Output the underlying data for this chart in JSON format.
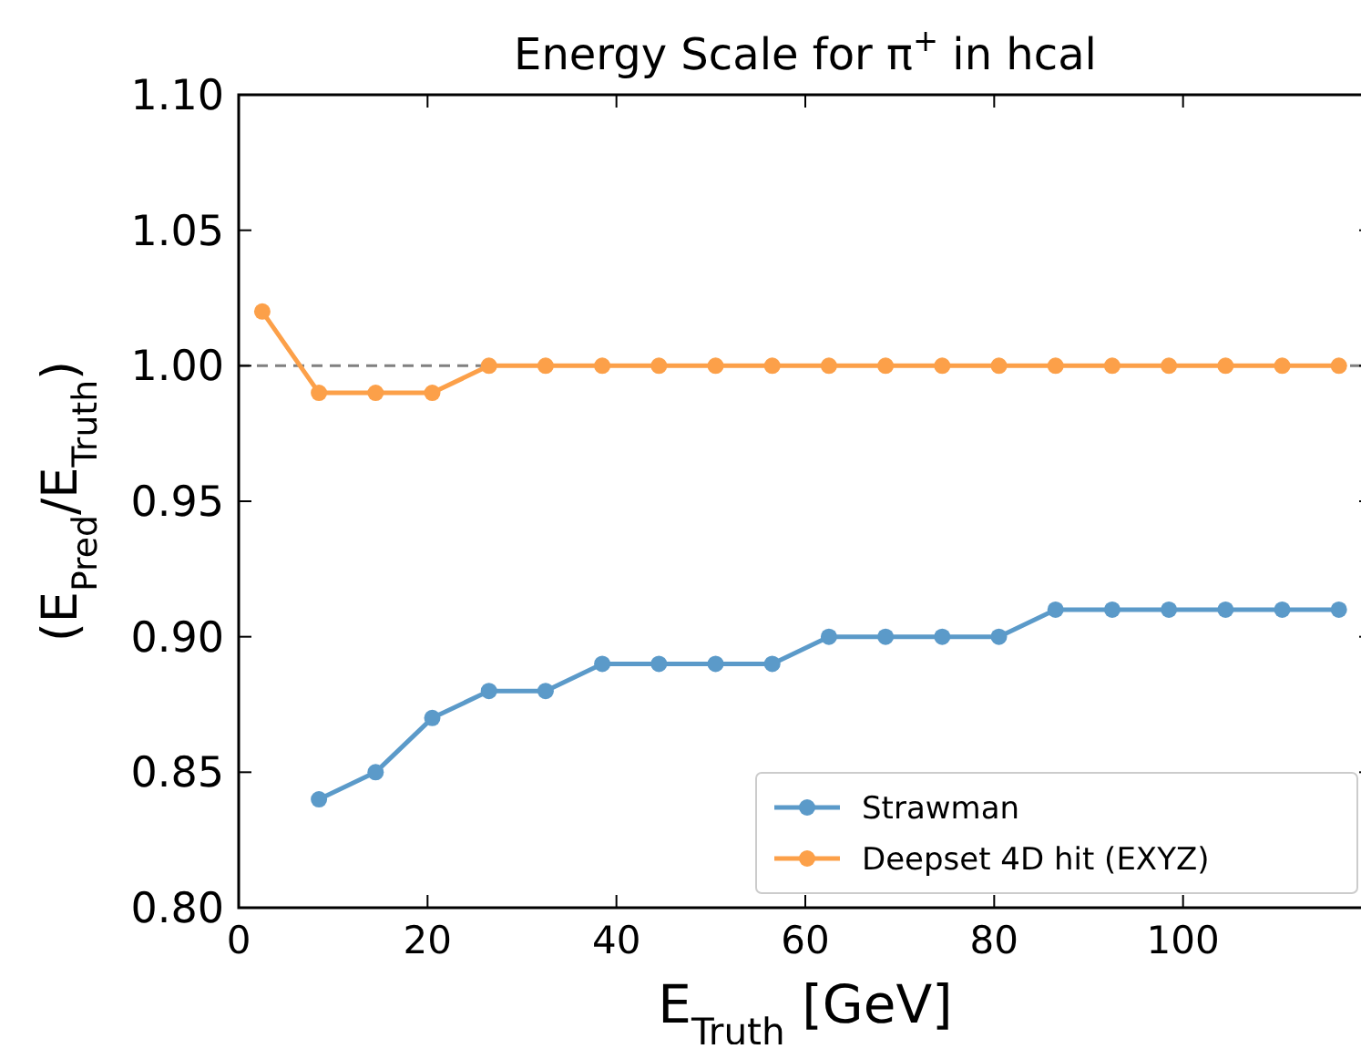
{
  "chart_data": {
    "type": "line",
    "title": "Energy Scale for π$^{+}$ in  hcal",
    "xlabel": "E$_{Truth}$ [GeV]",
    "ylabel": "(E$_{Pred}$/E$_{Truth}$)",
    "x": [
      2.5,
      8.5,
      14.5,
      20.5,
      26.5,
      32.5,
      38.5,
      44.5,
      50.5,
      56.5,
      62.5,
      68.5,
      74.5,
      80.5,
      86.5,
      92.5,
      98.5,
      104.5,
      110.5,
      116.5
    ],
    "series": [
      {
        "name": "Strawman",
        "color": "#5b9ac9",
        "values": [
          null,
          0.84,
          0.85,
          0.87,
          0.88,
          0.88,
          0.89,
          0.89,
          0.89,
          0.89,
          0.9,
          0.9,
          0.9,
          0.9,
          0.91,
          0.91,
          0.91,
          0.91,
          0.91,
          0.91
        ]
      },
      {
        "name": "Deepset 4D hit (EXYZ)",
        "color": "#fca049",
        "values": [
          1.02,
          0.99,
          0.99,
          0.99,
          1.0,
          1.0,
          1.0,
          1.0,
          1.0,
          1.0,
          1.0,
          1.0,
          1.0,
          1.0,
          1.0,
          1.0,
          1.0,
          1.0,
          1.0,
          1.0
        ]
      }
    ],
    "xlim": [
      0,
      120
    ],
    "xticks": [
      0,
      20,
      40,
      60,
      80,
      100
    ],
    "ylim": [
      0.8,
      1.1
    ],
    "yticks": [
      {
        "value": 0.8,
        "label": "0.80"
      },
      {
        "value": 0.85,
        "label": "0.85"
      },
      {
        "value": 0.9,
        "label": "0.90"
      },
      {
        "value": 0.95,
        "label": "0.95"
      },
      {
        "value": 1.0,
        "label": "1.00"
      },
      {
        "value": 1.05,
        "label": "1.05"
      },
      {
        "value": 1.1,
        "label": "1.10"
      }
    ],
    "ref_lines": [
      {
        "axis": "y",
        "value": 1.0,
        "color": "#808080",
        "line_style": "dashed"
      }
    ],
    "legend": "bottom right",
    "marker": "circle",
    "line_style": "solid",
    "grid": false
  }
}
